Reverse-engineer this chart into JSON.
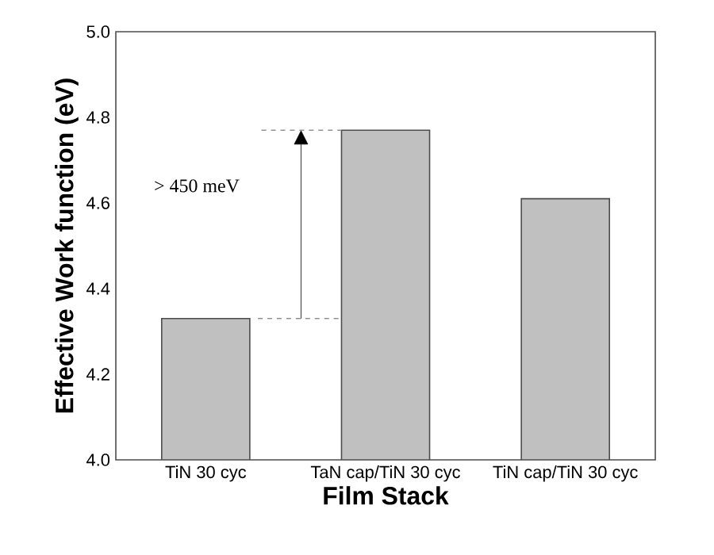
{
  "chart_data": {
    "type": "bar",
    "xlabel": "Film Stack",
    "ylabel": "Effective Work function (eV)",
    "categories": [
      "TiN 30 cyc",
      "TaN cap/TiN 30 cyc",
      "TiN cap/TiN 30 cyc"
    ],
    "values": [
      4.33,
      4.77,
      4.61
    ],
    "color": "#c0c0c0",
    "ylim": [
      4.0,
      5.0
    ],
    "yticks": [
      {
        "value": 4.0,
        "label": "4.0"
      },
      {
        "value": 4.2,
        "label": "4.2"
      },
      {
        "value": 4.4,
        "label": "4.4"
      },
      {
        "value": 4.6,
        "label": "4.6"
      },
      {
        "value": 4.8,
        "label": "4.8"
      },
      {
        "value": 5.0,
        "label": "5.0"
      }
    ],
    "annotations": [
      "> 450 meV"
    ],
    "grid": false
  }
}
